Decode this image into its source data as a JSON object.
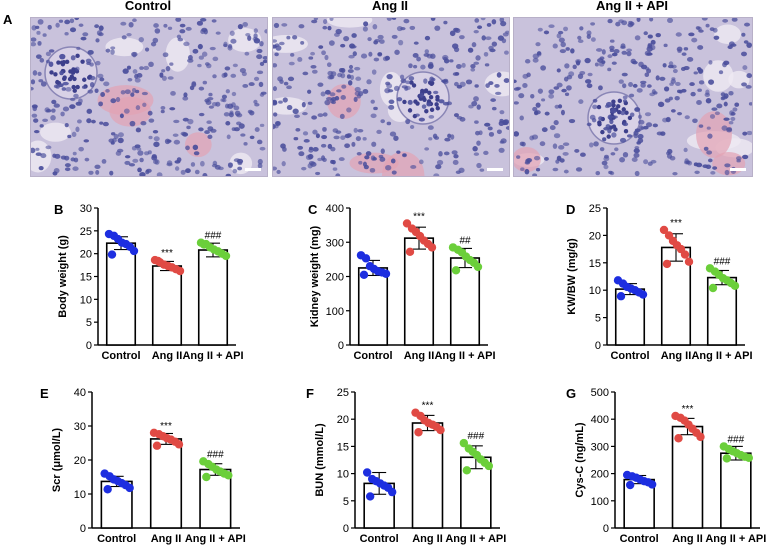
{
  "panels": {
    "a_letter": "A",
    "images": [
      {
        "title": "Control",
        "letter": ""
      },
      {
        "title": "Ang II",
        "letter": ""
      },
      {
        "title": "Ang II + API",
        "letter": ""
      }
    ]
  },
  "colors": {
    "control": "#1d2ee0",
    "angii": "#e04a44",
    "api": "#6bcf3a",
    "stain_bg": "#c9c2dc",
    "nuclei": "#4b4f9c",
    "pink": "#e2a2b4"
  },
  "chart_data": [
    {
      "letter": "B",
      "type": "bar",
      "ylabel": "Body weight (g)",
      "ylim": [
        0,
        30
      ],
      "yticks": [
        0,
        5,
        10,
        15,
        20,
        25,
        30
      ],
      "categories": [
        "Control",
        "Ang II",
        "Ang II + API"
      ],
      "values": [
        22.3,
        17.3,
        20.8
      ],
      "errors": [
        1.4,
        1.0,
        1.5
      ],
      "marks": [
        "",
        "***",
        "###"
      ],
      "points": [
        [
          24.3,
          23.9,
          23.2,
          22.4,
          22.1,
          21.5,
          20.6,
          19.8
        ],
        [
          18.6,
          18.1,
          17.6,
          17.3,
          17.0,
          16.6,
          16.2,
          18.4
        ],
        [
          22.4,
          22.1,
          21.4,
          20.9,
          20.5,
          20.0,
          19.5,
          22.0
        ]
      ]
    },
    {
      "letter": "C",
      "type": "bar",
      "ylabel": "Kidney weight (mg)",
      "ylim": [
        0,
        400
      ],
      "yticks": [
        0,
        100,
        200,
        300,
        400
      ],
      "categories": [
        "Control",
        "Ang II",
        "Ang II + API"
      ],
      "values": [
        225,
        312,
        254
      ],
      "errors": [
        22,
        32,
        28
      ],
      "marks": [
        "",
        "***",
        "##"
      ],
      "points": [
        [
          262,
          253,
          230,
          222,
          215,
          212,
          208,
          205
        ],
        [
          355,
          340,
          330,
          318,
          305,
          295,
          285,
          272
        ],
        [
          285,
          278,
          270,
          258,
          248,
          240,
          228,
          218
        ]
      ]
    },
    {
      "letter": "D",
      "type": "bar",
      "ylabel": "KW/BW (mg/g)",
      "ylim": [
        0,
        25
      ],
      "yticks": [
        0,
        5,
        10,
        15,
        20,
        25
      ],
      "categories": [
        "Control",
        "Ang II",
        "Ang II + API"
      ],
      "values": [
        10.2,
        17.8,
        12.3
      ],
      "errors": [
        1.0,
        2.5,
        1.3
      ],
      "marks": [
        "",
        "***",
        "###"
      ],
      "points": [
        [
          11.8,
          11.2,
          10.6,
          10.3,
          10.0,
          9.6,
          9.2,
          8.9
        ],
        [
          21.0,
          20.0,
          19.0,
          18.2,
          17.5,
          16.5,
          15.2,
          14.8
        ],
        [
          14.0,
          13.4,
          12.8,
          12.2,
          11.8,
          11.3,
          10.8,
          10.4
        ]
      ]
    },
    {
      "letter": "E",
      "type": "bar",
      "ylabel": "Scr (μmol/L)",
      "ylim": [
        0,
        40
      ],
      "yticks": [
        0,
        10,
        20,
        30,
        40
      ],
      "categories": [
        "Control",
        "Ang II",
        "Ang II + API"
      ],
      "values": [
        13.7,
        26.2,
        17.2
      ],
      "errors": [
        1.5,
        1.6,
        1.7
      ],
      "marks": [
        "",
        "***",
        "###"
      ],
      "points": [
        [
          16.0,
          15.2,
          14.3,
          13.8,
          13.2,
          12.6,
          11.8,
          11.4
        ],
        [
          28.0,
          27.6,
          27.0,
          26.4,
          26.0,
          25.4,
          24.6,
          24.2
        ],
        [
          19.6,
          18.8,
          18.0,
          17.2,
          16.6,
          16.0,
          15.5,
          15.0
        ]
      ]
    },
    {
      "letter": "F",
      "type": "bar",
      "ylabel": "BUN (mmol/L)",
      "ylim": [
        0,
        25
      ],
      "yticks": [
        0,
        5,
        10,
        15,
        20,
        25
      ],
      "categories": [
        "Control",
        "Ang II",
        "Ang II + API"
      ],
      "values": [
        8.2,
        19.3,
        13.0
      ],
      "errors": [
        2.0,
        1.4,
        2.1
      ],
      "marks": [
        "",
        "***",
        "###"
      ],
      "points": [
        [
          10.2,
          9.0,
          8.6,
          8.2,
          7.8,
          7.4,
          6.6,
          5.8
        ],
        [
          21.2,
          20.6,
          19.8,
          19.3,
          19.0,
          18.6,
          18.0,
          17.6
        ],
        [
          15.6,
          14.6,
          14.0,
          13.4,
          12.6,
          12.0,
          11.4,
          10.6
        ]
      ]
    },
    {
      "letter": "G",
      "type": "bar",
      "ylabel": "Cys-C (ng/mL)",
      "ylim": [
        0,
        500
      ],
      "yticks": [
        0,
        100,
        200,
        300,
        400,
        500
      ],
      "categories": [
        "Control",
        "Ang II",
        "Ang II + API"
      ],
      "values": [
        178,
        373,
        275
      ],
      "errors": [
        15,
        30,
        25
      ],
      "marks": [
        "",
        "***",
        "###"
      ],
      "points": [
        [
          195,
          190,
          185,
          178,
          172,
          168,
          160,
          158
        ],
        [
          412,
          405,
          395,
          380,
          365,
          350,
          335,
          330
        ],
        [
          300,
          290,
          282,
          275,
          268,
          262,
          258,
          256
        ]
      ]
    }
  ]
}
